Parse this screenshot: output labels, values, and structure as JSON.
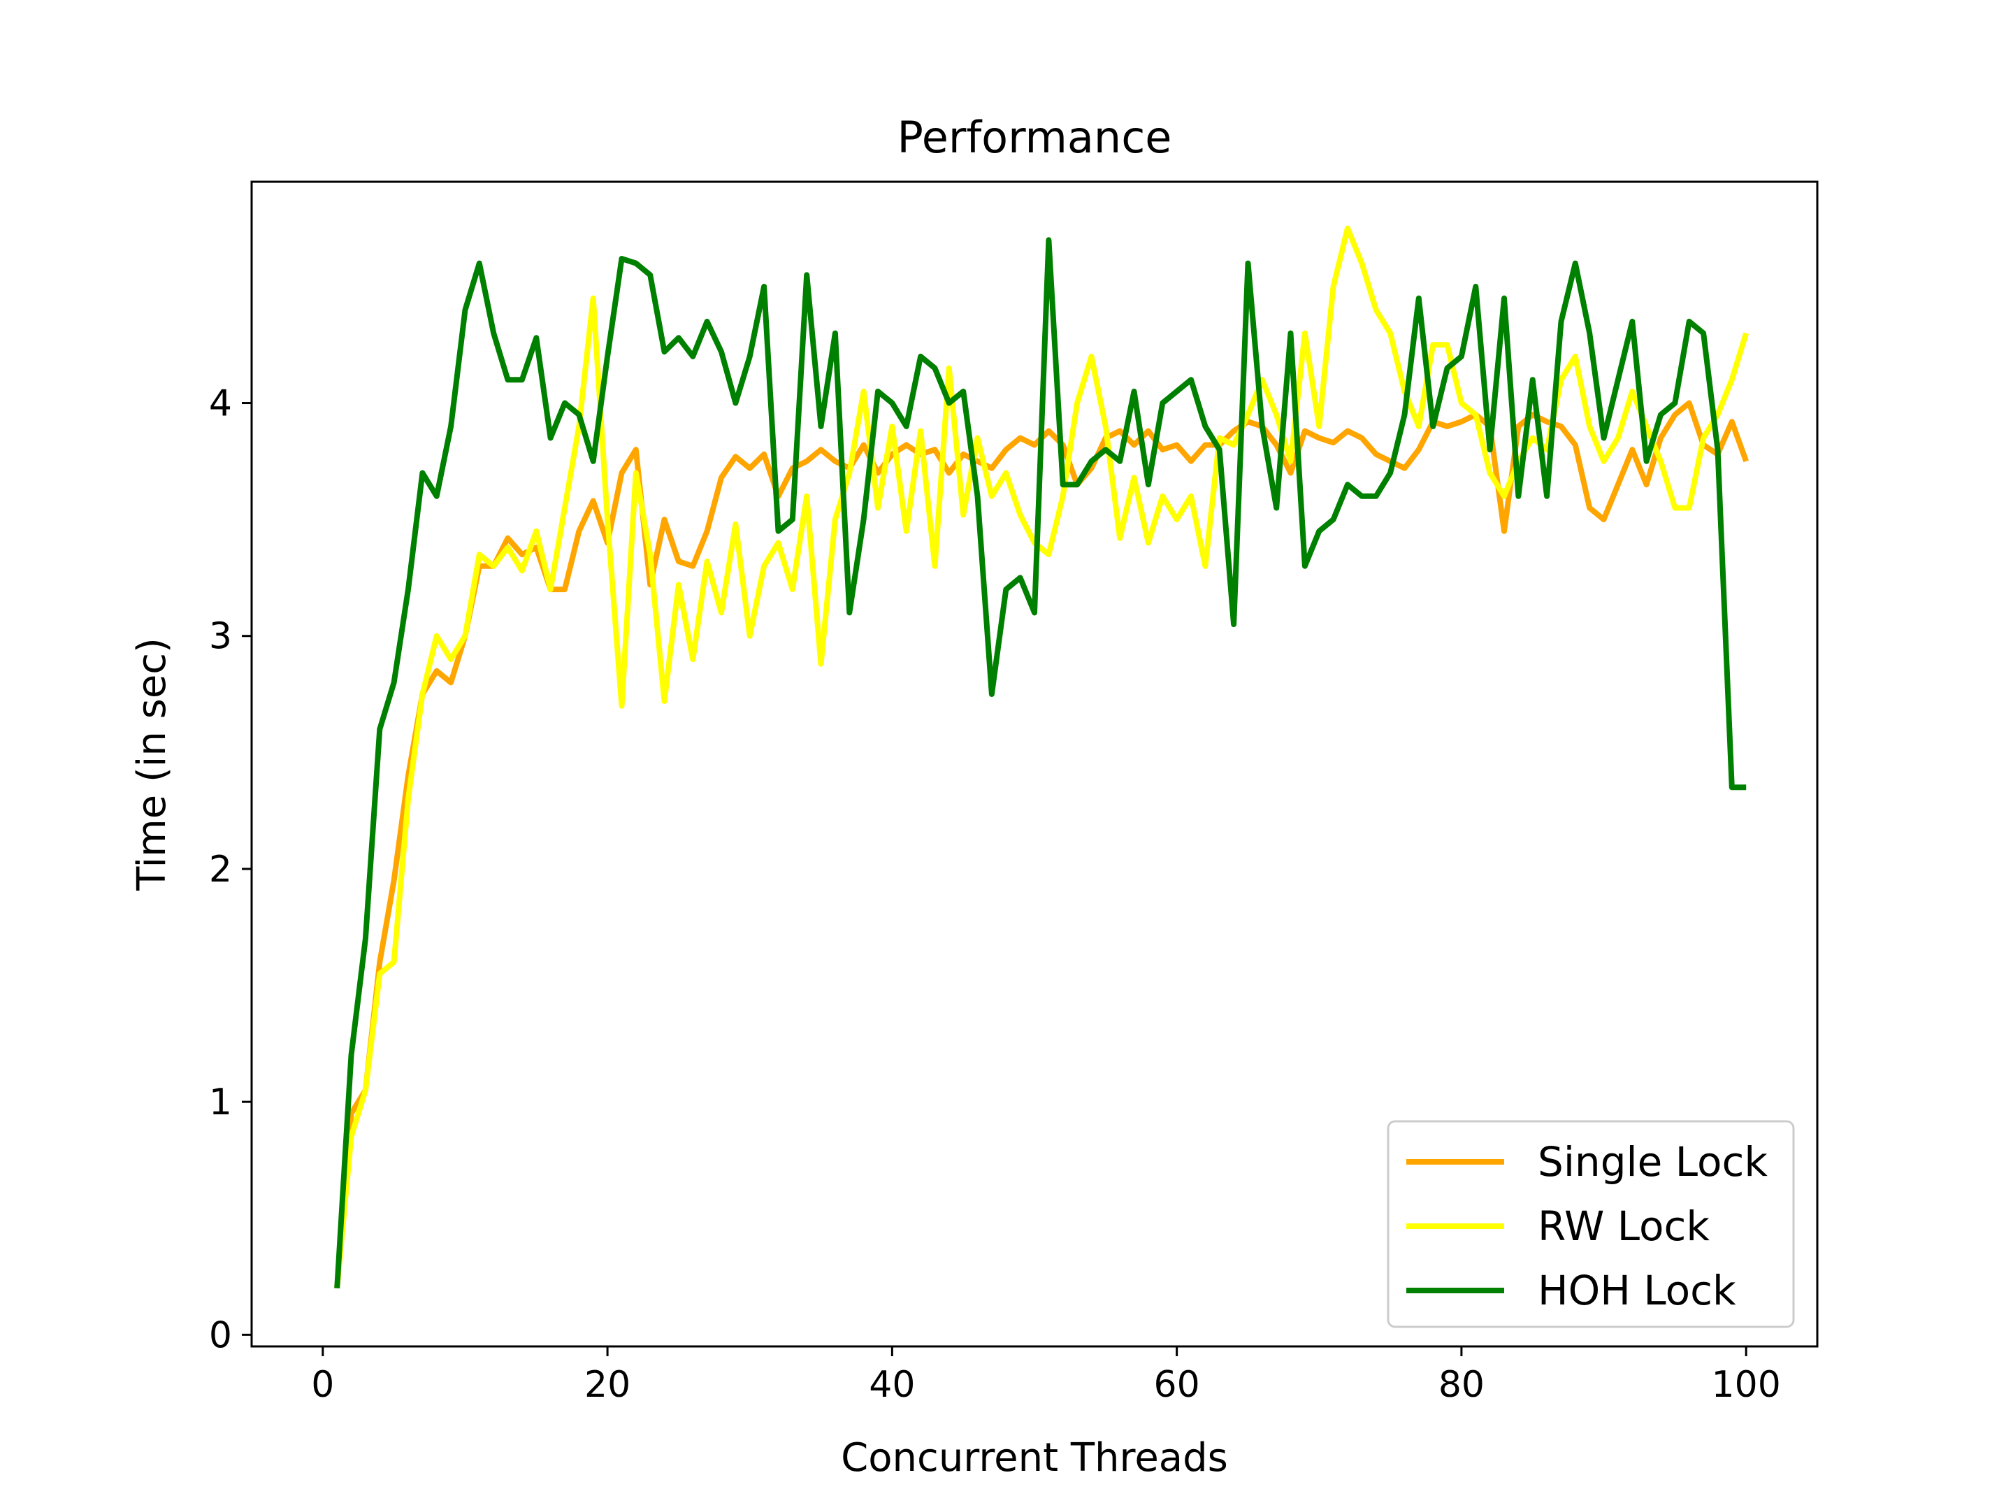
{
  "chart_data": {
    "type": "line",
    "title": "Performance",
    "xlabel": "Concurrent Threads",
    "ylabel": "Time (in sec)",
    "xlim": [
      -5,
      105
    ],
    "ylim": [
      -0.05,
      4.95
    ],
    "xticks": [
      0,
      20,
      40,
      60,
      80,
      100
    ],
    "yticks": [
      0,
      1,
      2,
      3,
      4
    ],
    "grid": false,
    "legend_position": "lower right",
    "series": [
      {
        "name": "Single Lock",
        "color": "#FFA500",
        "x": [
          1,
          2,
          3,
          4,
          5,
          6,
          7,
          8,
          9,
          10,
          11,
          12,
          13,
          14,
          15,
          16,
          17,
          18,
          19,
          20,
          21,
          22,
          23,
          24,
          25,
          26,
          27,
          28,
          29,
          30,
          31,
          32,
          33,
          34,
          35,
          36,
          37,
          38,
          39,
          40,
          41,
          42,
          43,
          44,
          45,
          46,
          47,
          48,
          49,
          50,
          51,
          52,
          53,
          54,
          55,
          56,
          57,
          58,
          59,
          60,
          61,
          62,
          63,
          64,
          65,
          66,
          67,
          68,
          69,
          70,
          71,
          72,
          73,
          74,
          75,
          76,
          77,
          78,
          79,
          80,
          81,
          82,
          83,
          84,
          85,
          86,
          87,
          88,
          89,
          90,
          91,
          92,
          93,
          94,
          95,
          96,
          97,
          98,
          99,
          100
        ],
        "y": [
          0.2,
          0.95,
          1.05,
          1.6,
          1.95,
          2.4,
          2.75,
          2.85,
          2.8,
          3.0,
          3.3,
          3.3,
          3.42,
          3.35,
          3.38,
          3.2,
          3.2,
          3.45,
          3.58,
          3.4,
          3.7,
          3.8,
          3.22,
          3.5,
          3.32,
          3.3,
          3.45,
          3.68,
          3.77,
          3.72,
          3.78,
          3.6,
          3.72,
          3.75,
          3.8,
          3.75,
          3.72,
          3.82,
          3.7,
          3.78,
          3.82,
          3.78,
          3.8,
          3.7,
          3.78,
          3.75,
          3.72,
          3.8,
          3.85,
          3.82,
          3.88,
          3.82,
          3.65,
          3.72,
          3.85,
          3.88,
          3.82,
          3.88,
          3.8,
          3.82,
          3.75,
          3.82,
          3.82,
          3.88,
          3.92,
          3.9,
          3.82,
          3.7,
          3.88,
          3.85,
          3.83,
          3.88,
          3.85,
          3.78,
          3.75,
          3.72,
          3.8,
          3.92,
          3.9,
          3.92,
          3.95,
          3.9,
          3.45,
          3.9,
          3.95,
          3.92,
          3.9,
          3.82,
          3.55,
          3.5,
          3.65,
          3.8,
          3.65,
          3.85,
          3.95,
          4.0,
          3.82,
          3.78,
          3.92,
          3.75
        ]
      },
      {
        "name": "RW Lock",
        "color": "#FFFF00",
        "x": [
          1,
          2,
          3,
          4,
          5,
          6,
          7,
          8,
          9,
          10,
          11,
          12,
          13,
          14,
          15,
          16,
          17,
          18,
          19,
          20,
          21,
          22,
          23,
          24,
          25,
          26,
          27,
          28,
          29,
          30,
          31,
          32,
          33,
          34,
          35,
          36,
          37,
          38,
          39,
          40,
          41,
          42,
          43,
          44,
          45,
          46,
          47,
          48,
          49,
          50,
          51,
          52,
          53,
          54,
          55,
          56,
          57,
          58,
          59,
          60,
          61,
          62,
          63,
          64,
          65,
          66,
          67,
          68,
          69,
          70,
          71,
          72,
          73,
          74,
          75,
          76,
          77,
          78,
          79,
          80,
          81,
          82,
          83,
          84,
          85,
          86,
          87,
          88,
          89,
          90,
          91,
          92,
          93,
          94,
          95,
          96,
          97,
          98,
          99,
          100
        ],
        "y": [
          0.2,
          0.85,
          1.05,
          1.55,
          1.6,
          2.3,
          2.75,
          3.0,
          2.9,
          3.0,
          3.35,
          3.3,
          3.38,
          3.28,
          3.45,
          3.2,
          3.55,
          3.9,
          4.45,
          3.5,
          2.7,
          3.7,
          3.35,
          2.72,
          3.22,
          2.9,
          3.32,
          3.1,
          3.48,
          3.0,
          3.3,
          3.4,
          3.2,
          3.6,
          2.88,
          3.5,
          3.7,
          4.05,
          3.55,
          3.9,
          3.45,
          3.88,
          3.3,
          4.15,
          3.52,
          3.85,
          3.6,
          3.7,
          3.52,
          3.4,
          3.35,
          3.6,
          4.0,
          4.2,
          3.9,
          3.42,
          3.68,
          3.4,
          3.6,
          3.5,
          3.6,
          3.3,
          3.85,
          3.82,
          3.95,
          4.1,
          3.95,
          3.75,
          4.3,
          3.9,
          4.5,
          4.75,
          4.6,
          4.4,
          4.3,
          4.05,
          3.9,
          4.25,
          4.25,
          4.0,
          3.95,
          3.7,
          3.6,
          3.75,
          3.85,
          3.8,
          4.1,
          4.2,
          3.9,
          3.75,
          3.85,
          4.05,
          3.9,
          3.75,
          3.55,
          3.55,
          3.85,
          3.95,
          4.1,
          4.3
        ]
      },
      {
        "name": "HOH Lock",
        "color": "#008000",
        "x": [
          1,
          2,
          3,
          4,
          5,
          6,
          7,
          8,
          9,
          10,
          11,
          12,
          13,
          14,
          15,
          16,
          17,
          18,
          19,
          20,
          21,
          22,
          23,
          24,
          25,
          26,
          27,
          28,
          29,
          30,
          31,
          32,
          33,
          34,
          35,
          36,
          37,
          38,
          39,
          40,
          41,
          42,
          43,
          44,
          45,
          46,
          47,
          48,
          49,
          50,
          51,
          52,
          53,
          54,
          55,
          56,
          57,
          58,
          59,
          60,
          61,
          62,
          63,
          64,
          65,
          66,
          67,
          68,
          69,
          70,
          71,
          72,
          73,
          74,
          75,
          76,
          77,
          78,
          79,
          80,
          81,
          82,
          83,
          84,
          85,
          86,
          87,
          88,
          89,
          90,
          91,
          92,
          93,
          94,
          95,
          96,
          97,
          98,
          99,
          100
        ],
        "y": [
          0.2,
          1.2,
          1.7,
          2.6,
          2.8,
          3.2,
          3.7,
          3.6,
          3.9,
          4.4,
          4.6,
          4.3,
          4.1,
          4.1,
          4.28,
          3.85,
          4.0,
          3.95,
          3.75,
          4.2,
          4.62,
          4.6,
          4.55,
          4.22,
          4.28,
          4.2,
          4.35,
          4.22,
          4.0,
          4.2,
          4.5,
          3.45,
          3.5,
          4.55,
          3.9,
          4.3,
          3.1,
          3.5,
          4.05,
          4.0,
          3.9,
          4.2,
          4.15,
          4.0,
          4.05,
          3.6,
          2.75,
          3.2,
          3.25,
          3.1,
          4.7,
          3.65,
          3.65,
          3.75,
          3.8,
          3.75,
          4.05,
          3.65,
          4.0,
          4.05,
          4.1,
          3.9,
          3.8,
          3.05,
          4.6,
          3.9,
          3.55,
          4.3,
          3.3,
          3.45,
          3.5,
          3.65,
          3.6,
          3.6,
          3.7,
          3.95,
          4.45,
          3.9,
          4.15,
          4.2,
          4.5,
          3.8,
          4.45,
          3.6,
          4.1,
          3.6,
          4.35,
          4.6,
          4.3,
          3.85,
          4.1,
          4.35,
          3.75,
          3.95,
          4.0,
          4.35,
          4.3,
          3.8,
          2.35,
          2.35
        ]
      }
    ]
  }
}
